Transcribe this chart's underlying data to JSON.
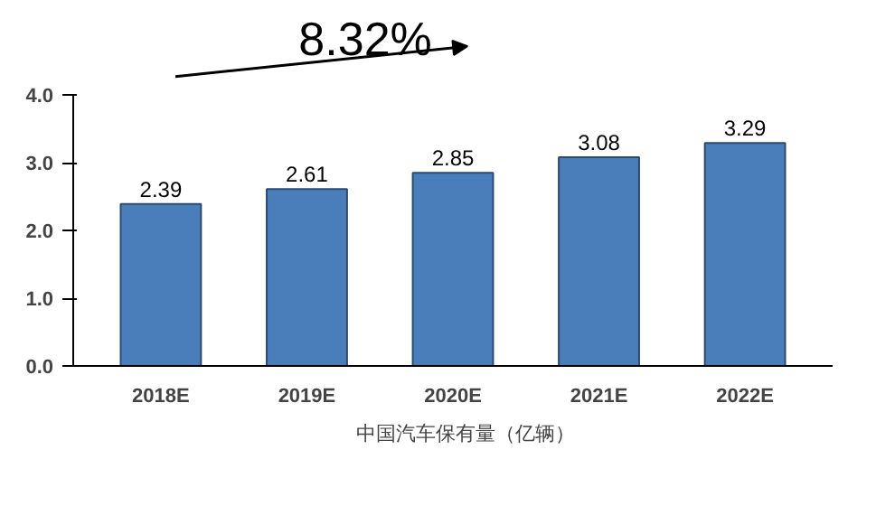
{
  "chart_data": {
    "type": "bar",
    "categories": [
      "2018E",
      "2019E",
      "2020E",
      "2021E",
      "2022E"
    ],
    "series": [
      {
        "name": "中国汽车保有量（亿辆）",
        "color": "#4a7ebb",
        "values": [
          2.39,
          2.61,
          2.85,
          3.08,
          3.29
        ]
      }
    ],
    "ylim": [
      0,
      4
    ],
    "yticks": [
      {
        "value": 0,
        "label": "0.0"
      },
      {
        "value": 1,
        "label": "1.0"
      },
      {
        "value": 2,
        "label": "2.0"
      },
      {
        "value": 3,
        "label": "3.0"
      },
      {
        "value": 4,
        "label": "4.0"
      }
    ],
    "annotations": [
      "8.32%"
    ],
    "data_labels": true,
    "grid": false,
    "legend": "bottom"
  }
}
